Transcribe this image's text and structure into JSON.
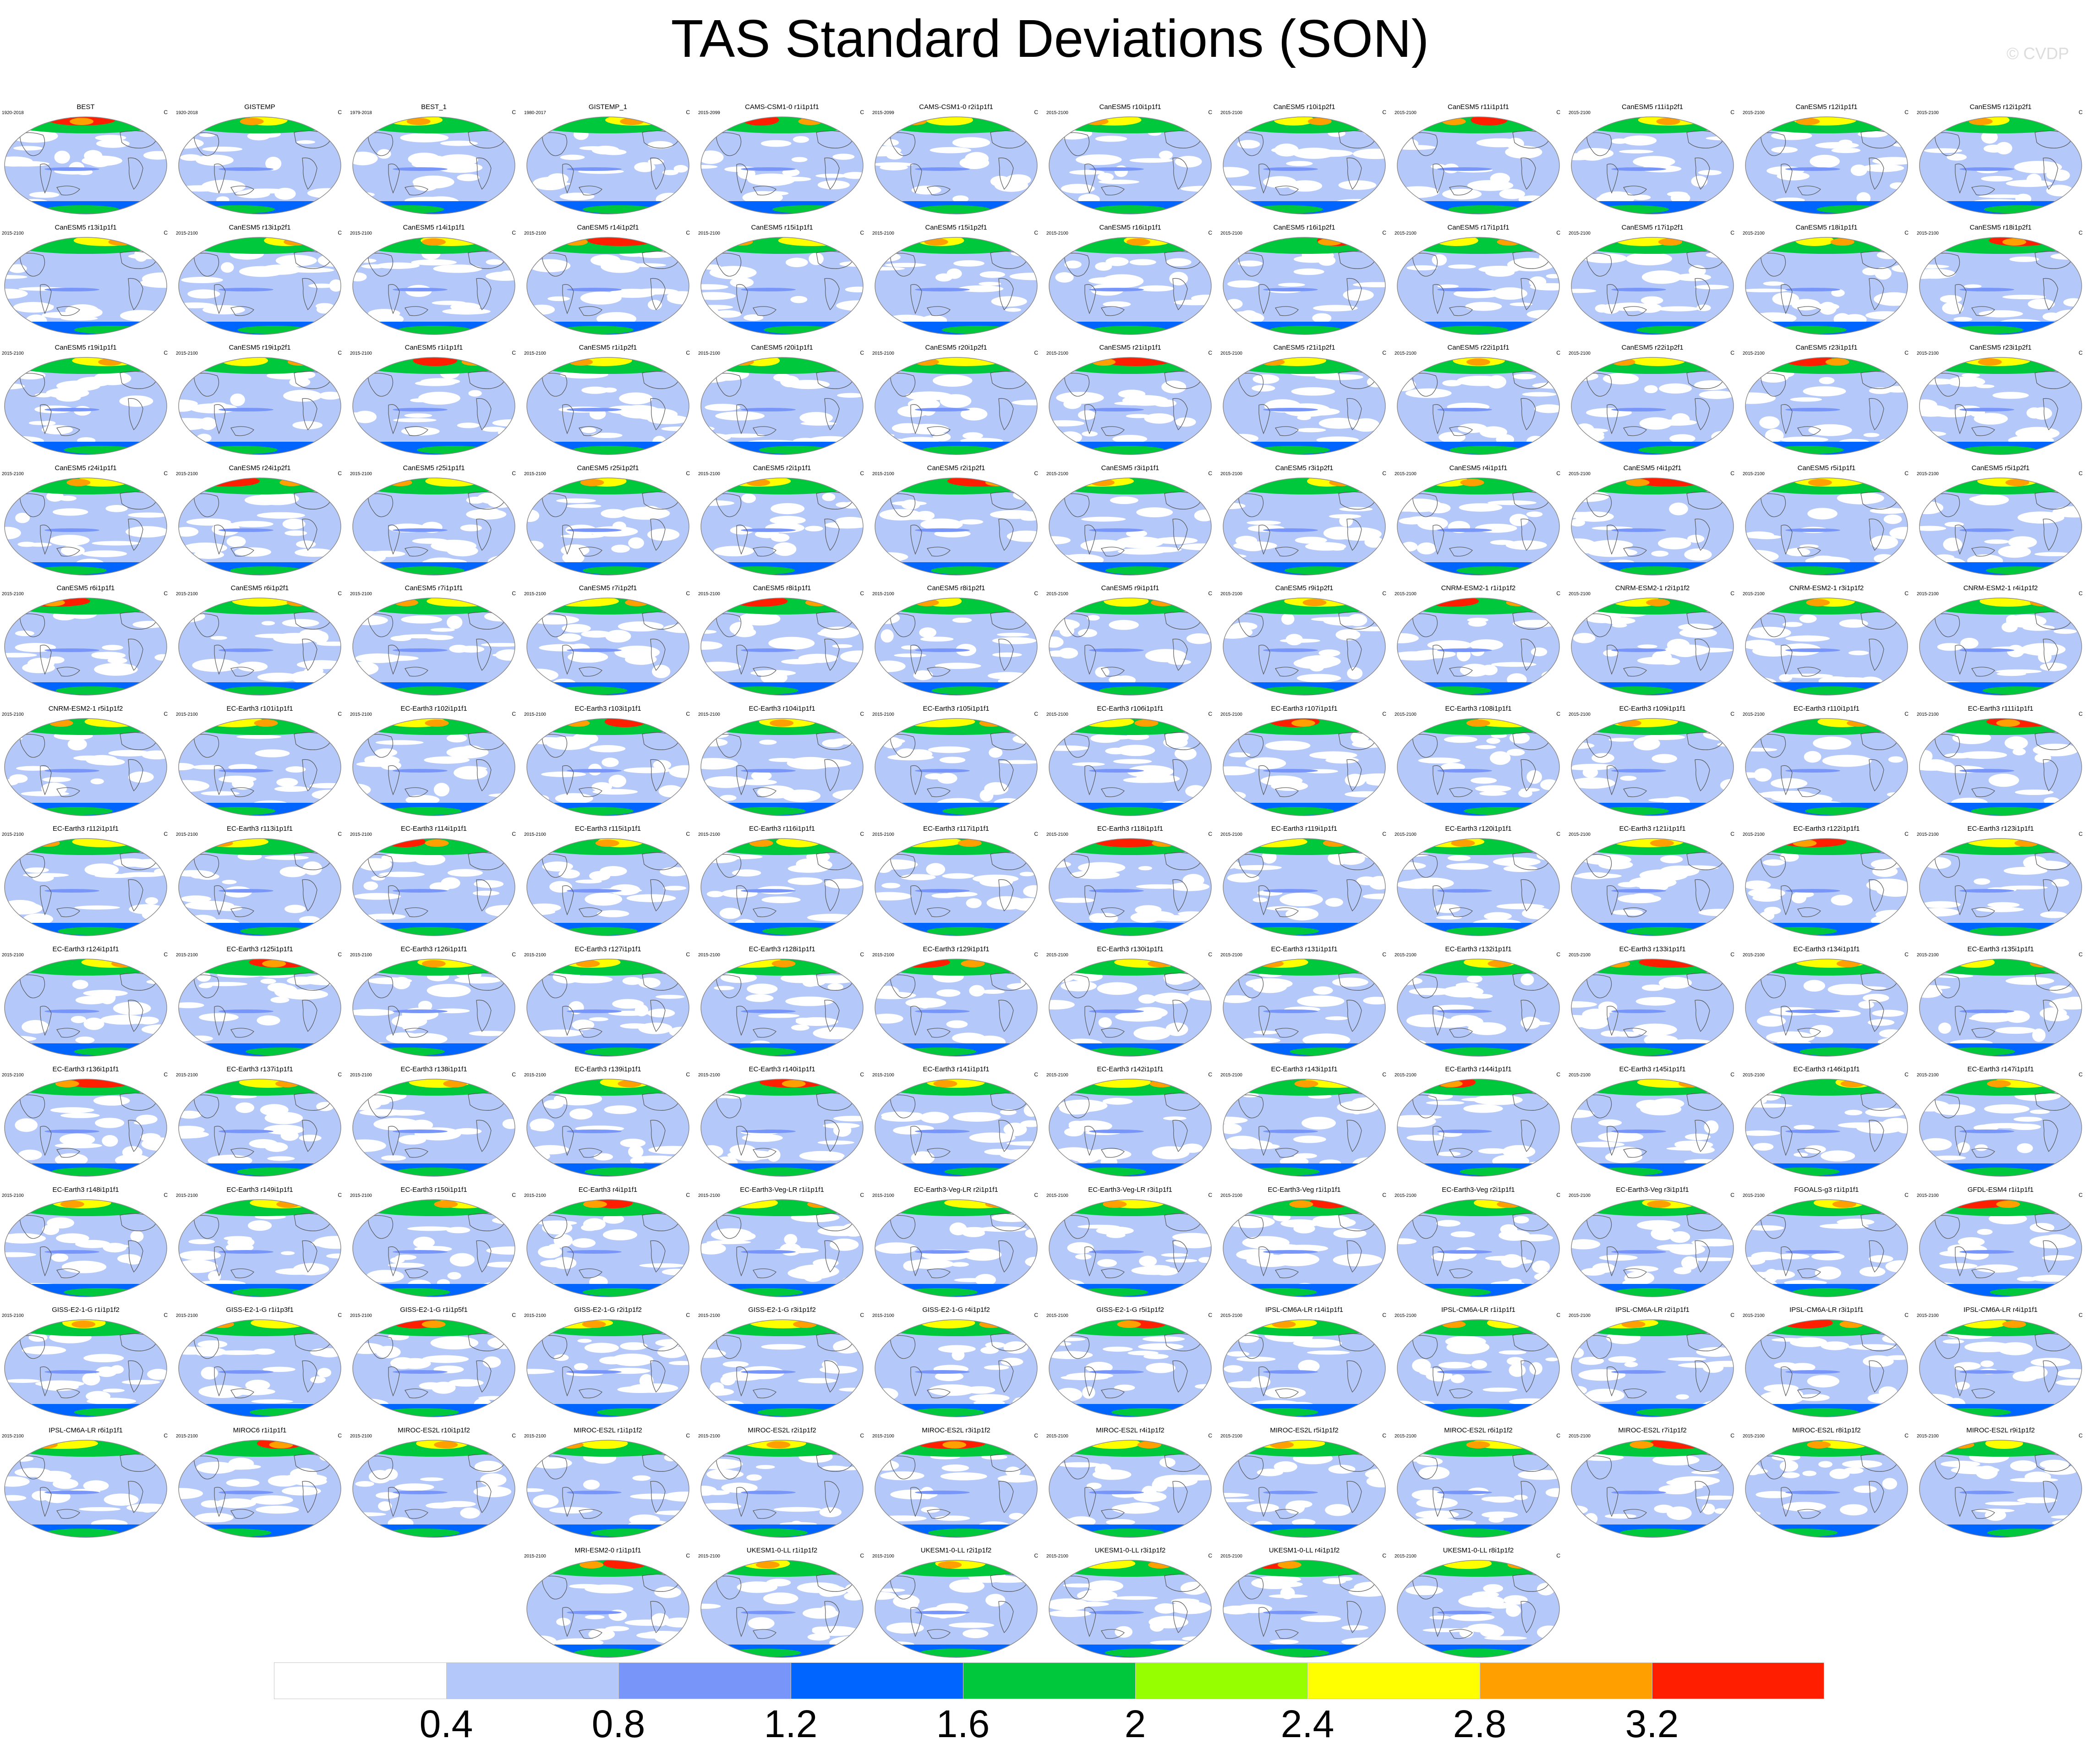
{
  "title": "TAS Standard Deviations (SON)",
  "copyright": "© CVDP",
  "unit_label": "C",
  "colorbar": {
    "colors": [
      "#ffffff",
      "#b4c8fa",
      "#7896fa",
      "#0064ff",
      "#00c83c",
      "#96ff00",
      "#ffff00",
      "#ffa000",
      "#ff1e00"
    ],
    "labels": [
      "0.4",
      "0.8",
      "1.2",
      "1.6",
      "2",
      "2.4",
      "2.8",
      "3.2"
    ]
  },
  "rows": [
    [
      {
        "title": "BEST",
        "period": "1920-2018"
      },
      {
        "title": "GISTEMP",
        "period": "1920-2018"
      },
      {
        "title": "BEST_1",
        "period": "1979-2018"
      },
      {
        "title": "GISTEMP_1",
        "period": "1980-2017"
      },
      {
        "title": "CAMS-CSM1-0 r1i1p1f1",
        "period": "2015-2099"
      },
      {
        "title": "CAMS-CSM1-0 r2i1p1f1",
        "period": "2015-2099"
      },
      {
        "title": "CanESM5 r10i1p1f1",
        "period": "2015-2100"
      },
      {
        "title": "CanESM5 r10i1p2f1",
        "period": "2015-2100"
      },
      {
        "title": "CanESM5 r11i1p1f1",
        "period": "2015-2100"
      },
      {
        "title": "CanESM5 r11i1p2f1",
        "period": "2015-2100"
      },
      {
        "title": "CanESM5 r12i1p1f1",
        "period": "2015-2100"
      },
      {
        "title": "CanESM5 r12i1p2f1",
        "period": "2015-2100"
      }
    ],
    [
      {
        "title": "CanESM5 r13i1p1f1",
        "period": "2015-2100"
      },
      {
        "title": "CanESM5 r13i1p2f1",
        "period": "2015-2100"
      },
      {
        "title": "CanESM5 r14i1p1f1",
        "period": "2015-2100"
      },
      {
        "title": "CanESM5 r14i1p2f1",
        "period": "2015-2100"
      },
      {
        "title": "CanESM5 r15i1p1f1",
        "period": "2015-2100"
      },
      {
        "title": "CanESM5 r15i1p2f1",
        "period": "2015-2100"
      },
      {
        "title": "CanESM5 r16i1p1f1",
        "period": "2015-2100"
      },
      {
        "title": "CanESM5 r16i1p2f1",
        "period": "2015-2100"
      },
      {
        "title": "CanESM5 r17i1p1f1",
        "period": "2015-2100"
      },
      {
        "title": "CanESM5 r17i1p2f1",
        "period": "2015-2100"
      },
      {
        "title": "CanESM5 r18i1p1f1",
        "period": "2015-2100"
      },
      {
        "title": "CanESM5 r18i1p2f1",
        "period": "2015-2100"
      }
    ],
    [
      {
        "title": "CanESM5 r19i1p1f1",
        "period": "2015-2100"
      },
      {
        "title": "CanESM5 r19i1p2f1",
        "period": "2015-2100"
      },
      {
        "title": "CanESM5 r1i1p1f1",
        "period": "2015-2100"
      },
      {
        "title": "CanESM5 r1i1p2f1",
        "period": "2015-2100"
      },
      {
        "title": "CanESM5 r20i1p1f1",
        "period": "2015-2100"
      },
      {
        "title": "CanESM5 r20i1p2f1",
        "period": "2015-2100"
      },
      {
        "title": "CanESM5 r21i1p1f1",
        "period": "2015-2100"
      },
      {
        "title": "CanESM5 r21i1p2f1",
        "period": "2015-2100"
      },
      {
        "title": "CanESM5 r22i1p1f1",
        "period": "2015-2100"
      },
      {
        "title": "CanESM5 r22i1p2f1",
        "period": "2015-2100"
      },
      {
        "title": "CanESM5 r23i1p1f1",
        "period": "2015-2100"
      },
      {
        "title": "CanESM5 r23i1p2f1",
        "period": "2015-2100"
      }
    ],
    [
      {
        "title": "CanESM5 r24i1p1f1",
        "period": "2015-2100"
      },
      {
        "title": "CanESM5 r24i1p2f1",
        "period": "2015-2100"
      },
      {
        "title": "CanESM5 r25i1p1f1",
        "period": "2015-2100"
      },
      {
        "title": "CanESM5 r25i1p2f1",
        "period": "2015-2100"
      },
      {
        "title": "CanESM5 r2i1p1f1",
        "period": "2015-2100"
      },
      {
        "title": "CanESM5 r2i1p2f1",
        "period": "2015-2100"
      },
      {
        "title": "CanESM5 r3i1p1f1",
        "period": "2015-2100"
      },
      {
        "title": "CanESM5 r3i1p2f1",
        "period": "2015-2100"
      },
      {
        "title": "CanESM5 r4i1p1f1",
        "period": "2015-2100"
      },
      {
        "title": "CanESM5 r4i1p2f1",
        "period": "2015-2100"
      },
      {
        "title": "CanESM5 r5i1p1f1",
        "period": "2015-2100"
      },
      {
        "title": "CanESM5 r5i1p2f1",
        "period": "2015-2100"
      }
    ],
    [
      {
        "title": "CanESM5 r6i1p1f1",
        "period": "2015-2100"
      },
      {
        "title": "CanESM5 r6i1p2f1",
        "period": "2015-2100"
      },
      {
        "title": "CanESM5 r7i1p1f1",
        "period": "2015-2100"
      },
      {
        "title": "CanESM5 r7i1p2f1",
        "period": "2015-2100"
      },
      {
        "title": "CanESM5 r8i1p1f1",
        "period": "2015-2100"
      },
      {
        "title": "CanESM5 r8i1p2f1",
        "period": "2015-2100"
      },
      {
        "title": "CanESM5 r9i1p1f1",
        "period": "2015-2100"
      },
      {
        "title": "CanESM5 r9i1p2f1",
        "period": "2015-2100"
      },
      {
        "title": "CNRM-ESM2-1 r1i1p1f2",
        "period": "2015-2100"
      },
      {
        "title": "CNRM-ESM2-1 r2i1p1f2",
        "period": "2015-2100"
      },
      {
        "title": "CNRM-ESM2-1 r3i1p1f2",
        "period": "2015-2100"
      },
      {
        "title": "CNRM-ESM2-1 r4i1p1f2",
        "period": "2015-2100"
      }
    ],
    [
      {
        "title": "CNRM-ESM2-1 r5i1p1f2",
        "period": "2015-2100"
      },
      {
        "title": "EC-Earth3 r101i1p1f1",
        "period": "2015-2100"
      },
      {
        "title": "EC-Earth3 r102i1p1f1",
        "period": "2015-2100"
      },
      {
        "title": "EC-Earth3 r103i1p1f1",
        "period": "2015-2100"
      },
      {
        "title": "EC-Earth3 r104i1p1f1",
        "period": "2015-2100"
      },
      {
        "title": "EC-Earth3 r105i1p1f1",
        "period": "2015-2100"
      },
      {
        "title": "EC-Earth3 r106i1p1f1",
        "period": "2015-2100"
      },
      {
        "title": "EC-Earth3 r107i1p1f1",
        "period": "2015-2100"
      },
      {
        "title": "EC-Earth3 r108i1p1f1",
        "period": "2015-2100"
      },
      {
        "title": "EC-Earth3 r109i1p1f1",
        "period": "2015-2100"
      },
      {
        "title": "EC-Earth3 r110i1p1f1",
        "period": "2015-2100"
      },
      {
        "title": "EC-Earth3 r111i1p1f1",
        "period": "2015-2100"
      }
    ],
    [
      {
        "title": "EC-Earth3 r112i1p1f1",
        "period": "2015-2100"
      },
      {
        "title": "EC-Earth3 r113i1p1f1",
        "period": "2015-2100"
      },
      {
        "title": "EC-Earth3 r114i1p1f1",
        "period": "2015-2100"
      },
      {
        "title": "EC-Earth3 r115i1p1f1",
        "period": "2015-2100"
      },
      {
        "title": "EC-Earth3 r116i1p1f1",
        "period": "2015-2100"
      },
      {
        "title": "EC-Earth3 r117i1p1f1",
        "period": "2015-2100"
      },
      {
        "title": "EC-Earth3 r118i1p1f1",
        "period": "2015-2100"
      },
      {
        "title": "EC-Earth3 r119i1p1f1",
        "period": "2015-2100"
      },
      {
        "title": "EC-Earth3 r120i1p1f1",
        "period": "2015-2100"
      },
      {
        "title": "EC-Earth3 r121i1p1f1",
        "period": "2015-2100"
      },
      {
        "title": "EC-Earth3 r122i1p1f1",
        "period": "2015-2100"
      },
      {
        "title": "EC-Earth3 r123i1p1f1",
        "period": "2015-2100"
      }
    ],
    [
      {
        "title": "EC-Earth3 r124i1p1f1",
        "period": "2015-2100"
      },
      {
        "title": "EC-Earth3 r125i1p1f1",
        "period": "2015-2100"
      },
      {
        "title": "EC-Earth3 r126i1p1f1",
        "period": "2015-2100"
      },
      {
        "title": "EC-Earth3 r127i1p1f1",
        "period": "2015-2100"
      },
      {
        "title": "EC-Earth3 r128i1p1f1",
        "period": "2015-2100"
      },
      {
        "title": "EC-Earth3 r129i1p1f1",
        "period": "2015-2100"
      },
      {
        "title": "EC-Earth3 r130i1p1f1",
        "period": "2015-2100"
      },
      {
        "title": "EC-Earth3 r131i1p1f1",
        "period": "2015-2100"
      },
      {
        "title": "EC-Earth3 r132i1p1f1",
        "period": "2015-2100"
      },
      {
        "title": "EC-Earth3 r133i1p1f1",
        "period": "2015-2100"
      },
      {
        "title": "EC-Earth3 r134i1p1f1",
        "period": "2015-2100"
      },
      {
        "title": "EC-Earth3 r135i1p1f1",
        "period": "2015-2100"
      }
    ],
    [
      {
        "title": "EC-Earth3 r136i1p1f1",
        "period": "2015-2100"
      },
      {
        "title": "EC-Earth3 r137i1p1f1",
        "period": "2015-2100"
      },
      {
        "title": "EC-Earth3 r138i1p1f1",
        "period": "2015-2100"
      },
      {
        "title": "EC-Earth3 r139i1p1f1",
        "period": "2015-2100"
      },
      {
        "title": "EC-Earth3 r140i1p1f1",
        "period": "2015-2100"
      },
      {
        "title": "EC-Earth3 r141i1p1f1",
        "period": "2015-2100"
      },
      {
        "title": "EC-Earth3 r142i1p1f1",
        "period": "2015-2100"
      },
      {
        "title": "EC-Earth3 r143i1p1f1",
        "period": "2015-2100"
      },
      {
        "title": "EC-Earth3 r144i1p1f1",
        "period": "2015-2100"
      },
      {
        "title": "EC-Earth3 r145i1p1f1",
        "period": "2015-2100"
      },
      {
        "title": "EC-Earth3 r146i1p1f1",
        "period": "2015-2100"
      },
      {
        "title": "EC-Earth3 r147i1p1f1",
        "period": "2015-2100"
      }
    ],
    [
      {
        "title": "EC-Earth3 r148i1p1f1",
        "period": "2015-2100"
      },
      {
        "title": "EC-Earth3 r149i1p1f1",
        "period": "2015-2100"
      },
      {
        "title": "EC-Earth3 r150i1p1f1",
        "period": "2015-2100"
      },
      {
        "title": "EC-Earth3 r4i1p1f1",
        "period": "2015-2100"
      },
      {
        "title": "EC-Earth3-Veg-LR r1i1p1f1",
        "period": "2015-2100"
      },
      {
        "title": "EC-Earth3-Veg-LR r2i1p1f1",
        "period": "2015-2100"
      },
      {
        "title": "EC-Earth3-Veg-LR r3i1p1f1",
        "period": "2015-2100"
      },
      {
        "title": "EC-Earth3-Veg r1i1p1f1",
        "period": "2015-2100"
      },
      {
        "title": "EC-Earth3-Veg r2i1p1f1",
        "period": "2015-2100"
      },
      {
        "title": "EC-Earth3-Veg r3i1p1f1",
        "period": "2015-2100"
      },
      {
        "title": "FGOALS-g3 r1i1p1f1",
        "period": "2015-2100"
      },
      {
        "title": "GFDL-ESM4 r1i1p1f1",
        "period": "2015-2100"
      }
    ],
    [
      {
        "title": "GISS-E2-1-G r1i1p1f2",
        "period": "2015-2100"
      },
      {
        "title": "GISS-E2-1-G r1i1p3f1",
        "period": "2015-2100"
      },
      {
        "title": "GISS-E2-1-G r1i1p5f1",
        "period": "2015-2100"
      },
      {
        "title": "GISS-E2-1-G r2i1p1f2",
        "period": "2015-2100"
      },
      {
        "title": "GISS-E2-1-G r3i1p1f2",
        "period": "2015-2100"
      },
      {
        "title": "GISS-E2-1-G r4i1p1f2",
        "period": "2015-2100"
      },
      {
        "title": "GISS-E2-1-G r5i1p1f2",
        "period": "2015-2100"
      },
      {
        "title": "IPSL-CM6A-LR r14i1p1f1",
        "period": "2015-2100"
      },
      {
        "title": "IPSL-CM6A-LR r1i1p1f1",
        "period": "2015-2100"
      },
      {
        "title": "IPSL-CM6A-LR r2i1p1f1",
        "period": "2015-2100"
      },
      {
        "title": "IPSL-CM6A-LR r3i1p1f1",
        "period": "2015-2100"
      },
      {
        "title": "IPSL-CM6A-LR r4i1p1f1",
        "period": "2015-2100"
      }
    ],
    [
      {
        "title": "IPSL-CM6A-LR r6i1p1f1",
        "period": "2015-2100"
      },
      {
        "title": "MIROC6 r1i1p1f1",
        "period": "2015-2100"
      },
      {
        "title": "MIROC-ES2L r10i1p1f2",
        "period": "2015-2100"
      },
      {
        "title": "MIROC-ES2L r1i1p1f2",
        "period": "2015-2100"
      },
      {
        "title": "MIROC-ES2L r2i1p1f2",
        "period": "2015-2100"
      },
      {
        "title": "MIROC-ES2L r3i1p1f2",
        "period": "2015-2100"
      },
      {
        "title": "MIROC-ES2L r4i1p1f2",
        "period": "2015-2100"
      },
      {
        "title": "MIROC-ES2L r5i1p1f2",
        "period": "2015-2100"
      },
      {
        "title": "MIROC-ES2L r6i1p1f2",
        "period": "2015-2100"
      },
      {
        "title": "MIROC-ES2L r7i1p1f2",
        "period": "2015-2100"
      },
      {
        "title": "MIROC-ES2L r8i1p1f2",
        "period": "2015-2100"
      },
      {
        "title": "MIROC-ES2L r9i1p1f2",
        "period": "2015-2100"
      }
    ],
    [
      {
        "title": "MRI-ESM2-0 r1i1p1f1",
        "period": "2015-2100"
      },
      {
        "title": "UKESM1-0-LL r1i1p1f2",
        "period": "2015-2100"
      },
      {
        "title": "UKESM1-0-LL r2i1p1f2",
        "period": "2015-2100"
      },
      {
        "title": "UKESM1-0-LL r3i1p1f2",
        "period": "2015-2100"
      },
      {
        "title": "UKESM1-0-LL r4i1p1f2",
        "period": "2015-2100"
      },
      {
        "title": "UKESM1-0-LL r8i1p1f2",
        "period": "2015-2100"
      }
    ]
  ]
}
